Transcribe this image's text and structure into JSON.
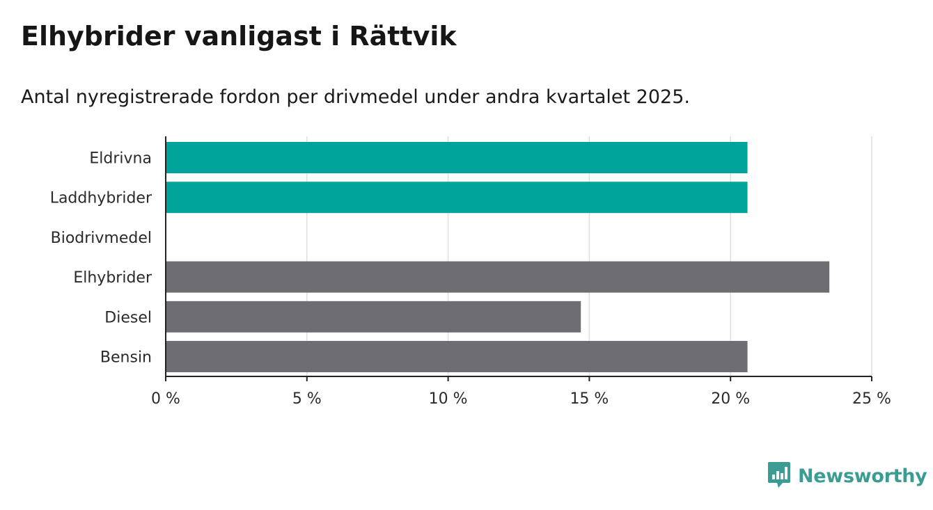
{
  "header": {
    "title": "Elhybrider vanligast i Rättvik",
    "subtitle": "Antal nyregistrerade fordon per drivmedel under andra kvartalet 2025."
  },
  "brand": {
    "name": "Newsworthy",
    "icon": "newsworthy-logo-icon",
    "color": "#3b9c94"
  },
  "chart_data": {
    "type": "bar",
    "orientation": "horizontal",
    "title": "Elhybrider vanligast i Rättvik",
    "subtitle": "Antal nyregistrerade fordon per drivmedel under andra kvartalet 2025.",
    "categories": [
      "Eldrivna",
      "Laddhybrider",
      "Biodrivmedel",
      "Elhybrider",
      "Diesel",
      "Bensin"
    ],
    "values": [
      20.6,
      20.6,
      0,
      23.5,
      14.7,
      20.6
    ],
    "colors": [
      "#00a499",
      "#00a499",
      "#00a499",
      "#6e6d73",
      "#6e6d73",
      "#6e6d73"
    ],
    "xlim": [
      0,
      25
    ],
    "xticks": [
      0,
      5,
      10,
      15,
      20,
      25
    ],
    "xtick_labels": [
      "0 %",
      "5 %",
      "10 %",
      "15 %",
      "20 %",
      "25 %"
    ],
    "grid": true,
    "xlabel": "",
    "ylabel": ""
  }
}
